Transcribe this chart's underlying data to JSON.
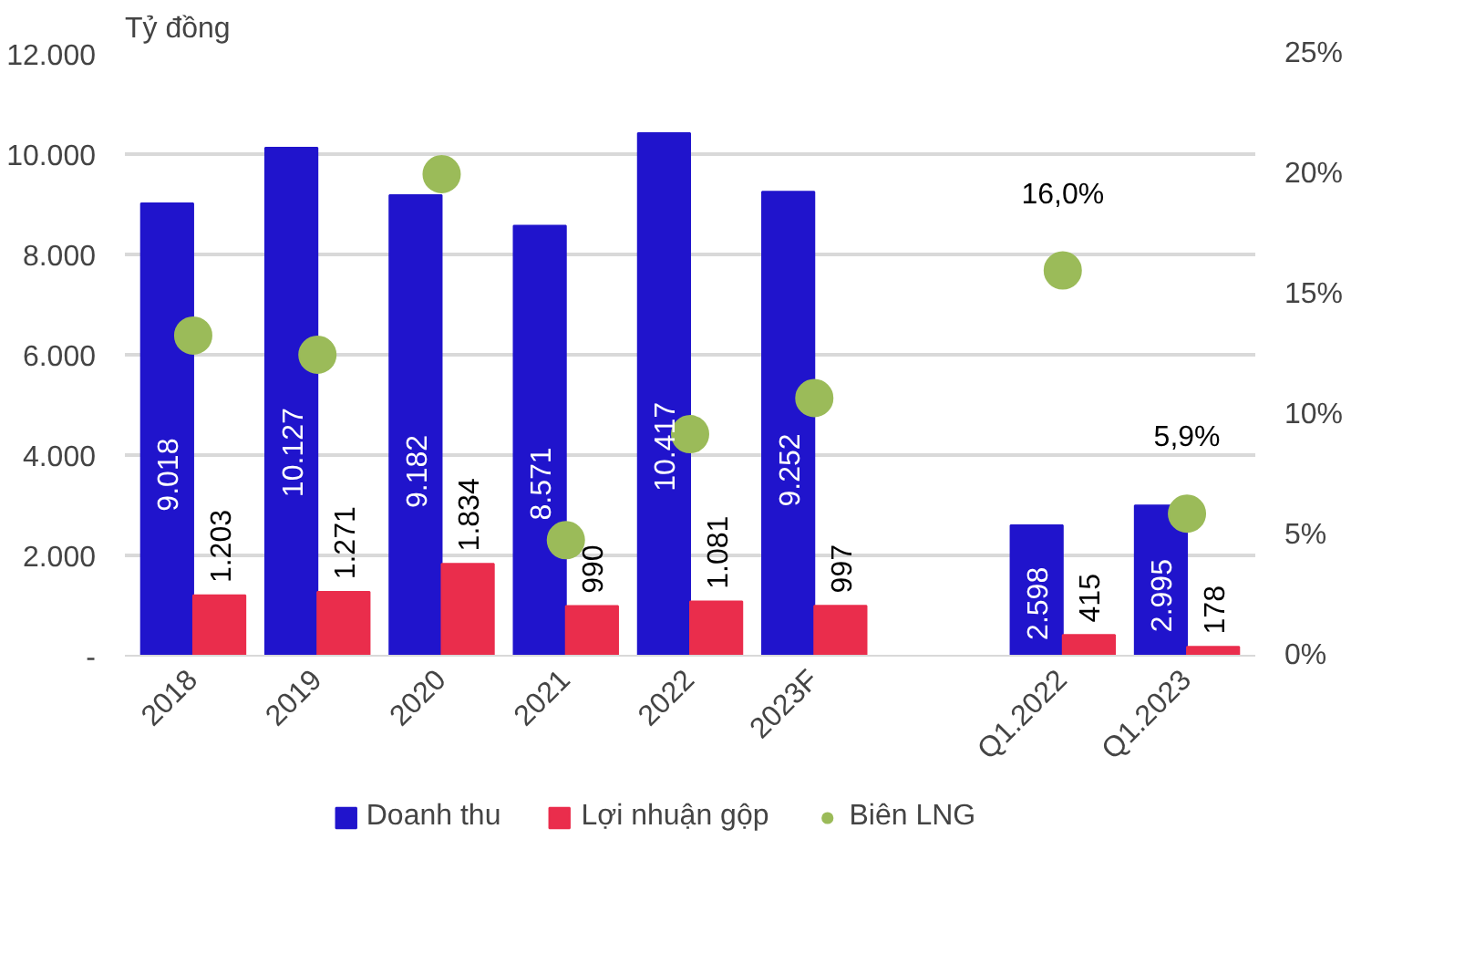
{
  "chart_data": {
    "type": "bar",
    "ylabel": "Tỷ đồng",
    "categories": [
      "2018",
      "2019",
      "2020",
      "2021",
      "2022",
      "2023F",
      null,
      "Q1.2022",
      "Q1.2023"
    ],
    "series": [
      {
        "name": "Doanh thu",
        "color": "#2014cc",
        "values": [
          9018,
          10127,
          9182,
          8571,
          10417,
          9252,
          null,
          2598,
          2995
        ],
        "value_labels": [
          "9.018",
          "10.127",
          "9.182",
          "8.571",
          "10.417",
          "9.252",
          null,
          "2.598",
          "2.995"
        ]
      },
      {
        "name": "Lợi nhuận gộp",
        "color": "#ea2d4c",
        "values": [
          1203,
          1271,
          1834,
          990,
          1081,
          997,
          null,
          415,
          178
        ],
        "value_labels": [
          "1.203",
          "1.271",
          "1.834",
          "990",
          "1.081",
          "997",
          null,
          "415",
          "178"
        ]
      },
      {
        "name": "Biên LNG",
        "type": "scatter",
        "axis": "y2",
        "color": "#9bbb59",
        "values": [
          13.3,
          12.5,
          20.0,
          4.8,
          9.2,
          10.7,
          null,
          16.0,
          5.9
        ],
        "value_labels": [
          null,
          null,
          null,
          null,
          null,
          null,
          null,
          "16,0%",
          "5,9%"
        ]
      }
    ],
    "ylim": [
      0,
      12000
    ],
    "yticks": [
      {
        "value": 0,
        "label": "-"
      },
      {
        "value": 2000,
        "label": "2.000"
      },
      {
        "value": 4000,
        "label": "4.000"
      },
      {
        "value": 6000,
        "label": "6.000"
      },
      {
        "value": 8000,
        "label": "8.000"
      },
      {
        "value": 10000,
        "label": "10.000"
      },
      {
        "value": 12000,
        "label": "12.000"
      }
    ],
    "y2lim": [
      0,
      25
    ],
    "y2ticks": [
      {
        "value": 0,
        "label": "0%"
      },
      {
        "value": 5,
        "label": "5%"
      },
      {
        "value": 10,
        "label": "10%"
      },
      {
        "value": 15,
        "label": "15%"
      },
      {
        "value": 20,
        "label": "20%"
      },
      {
        "value": 25,
        "label": "25%"
      }
    ],
    "grid": "y",
    "legend": "bottom",
    "marker": "circle"
  }
}
